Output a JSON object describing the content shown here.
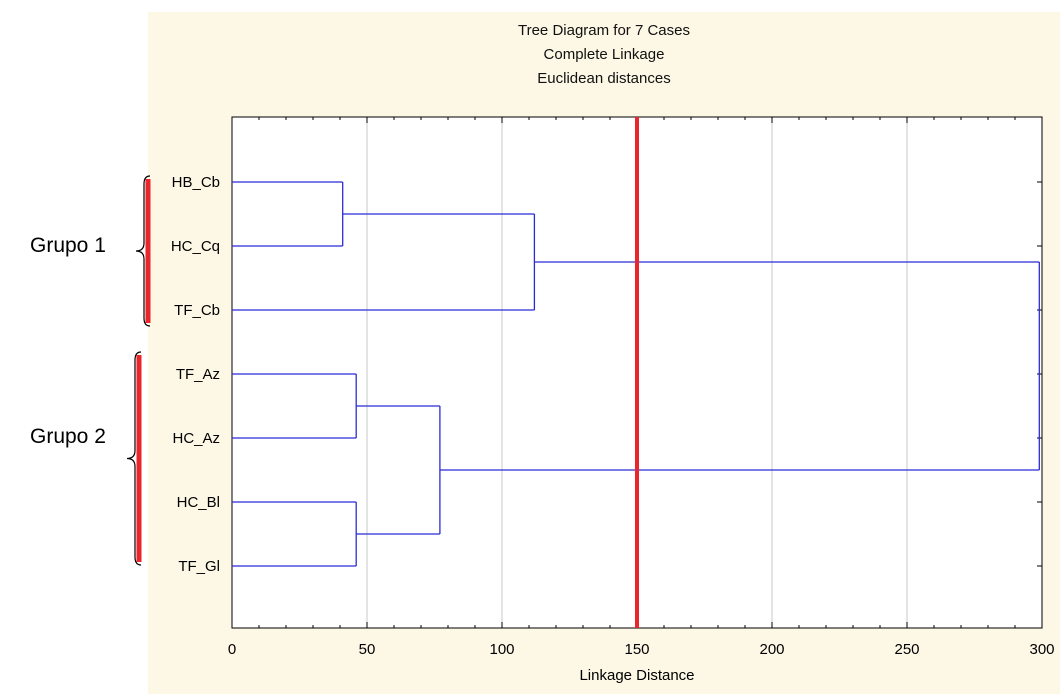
{
  "chart_data": {
    "type": "dendrogram",
    "title": "Tree Diagram for 7 Cases",
    "subtitle_1": "Complete Linkage",
    "subtitle_2": "Euclidean distances",
    "xlabel": "Linkage Distance",
    "xlim": [
      0,
      300
    ],
    "xticks": [
      0,
      50,
      100,
      150,
      200,
      250,
      300
    ],
    "grid": true,
    "cases": [
      "HB_Cb",
      "HC_Cq",
      "TF_Cb",
      "TF_Az",
      "HC_Az",
      "HC_Bl",
      "TF_Gl"
    ],
    "merges": [
      {
        "left": "HB_Cb",
        "right": "HC_Cq",
        "distance": 41
      },
      {
        "left": "TF_Az",
        "right": "HC_Az",
        "distance": 46
      },
      {
        "left": "HC_Bl",
        "right": "TF_Gl",
        "distance": 46
      },
      {
        "left": "HB_Cb+HC_Cq",
        "right": "TF_Cb",
        "distance": 112
      },
      {
        "left": "TF_Az+HC_Az",
        "right": "HC_Bl+TF_Gl",
        "distance": 77
      },
      {
        "left": "HB_Cb+HC_Cq+TF_Cb",
        "right": "TF_Az+HC_Az+HC_Bl+TF_Gl",
        "distance": 299
      }
    ],
    "cut_line": 150,
    "groups": [
      {
        "label": "Grupo 1",
        "members": [
          "HB_Cb",
          "HC_Cq",
          "TF_Cb"
        ]
      },
      {
        "label": "Grupo 2",
        "members": [
          "TF_Az",
          "HC_Az",
          "HC_Bl",
          "TF_Gl"
        ]
      }
    ],
    "colors": {
      "tree": "#2b2bd6",
      "cut_line": "#e8262c",
      "brace": "#e8262c",
      "grid": "#c8c8c8",
      "background": "#fdf7e5"
    }
  }
}
